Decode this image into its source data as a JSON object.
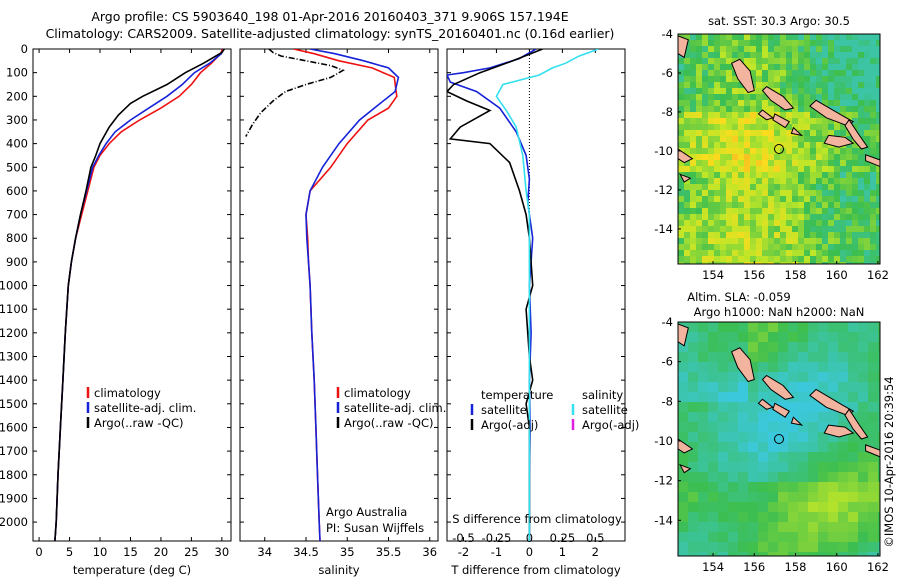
{
  "header": {
    "line1": "Argo profile: CS 5903640_198 01-Apr-2016 20160403_371 9.906S 157.194E",
    "line2": "Climatology: CARS2009. Satellite-adjusted climatology: synTS_20160401.nc (0.16d earlier)"
  },
  "side_label": "©IMOS 10-Apr-2016 20:39:54",
  "colors": {
    "red": "#ee1111",
    "blue": "#1522d8",
    "black": "#000000",
    "cyan": "#33e0ee",
    "magenta": "#e020e0",
    "land": "#f2b49e"
  },
  "chart_data": [
    {
      "id": "temperature",
      "type": "line",
      "xlabel": "temperature (deg C)",
      "xlim": [
        -1,
        31.5
      ],
      "ylim": [
        0,
        2080
      ],
      "y_reversed": true,
      "xticks": [
        0,
        5,
        10,
        15,
        20,
        25,
        30
      ],
      "yticks": [
        0,
        100,
        200,
        300,
        400,
        500,
        600,
        700,
        800,
        900,
        1000,
        1100,
        1200,
        1300,
        1400,
        1500,
        1600,
        1700,
        1800,
        1900,
        2000
      ],
      "legend": {
        "position": "lower-middle",
        "entries": [
          {
            "label": "climatology",
            "color": "red"
          },
          {
            "label": "satellite-adj. clim.",
            "color": "blue"
          },
          {
            "label": "Argo(..raw -QC)",
            "color": "black"
          }
        ]
      },
      "series": [
        {
          "name": "climatology",
          "color": "red",
          "points": [
            [
              30.1,
              0
            ],
            [
              29.8,
              20
            ],
            [
              28.3,
              60
            ],
            [
              26.5,
              100
            ],
            [
              25,
              150
            ],
            [
              23,
              200
            ],
            [
              20,
              250
            ],
            [
              16.5,
              300
            ],
            [
              13.5,
              350
            ],
            [
              11.5,
              400
            ],
            [
              10,
              450
            ],
            [
              9,
              500
            ],
            [
              8,
              600
            ],
            [
              7,
              700
            ],
            [
              6,
              800
            ],
            [
              5.3,
              900
            ],
            [
              4.8,
              1000
            ],
            [
              4.3,
              1200
            ],
            [
              3.9,
              1400
            ],
            [
              3.5,
              1600
            ],
            [
              3.1,
              1800
            ],
            [
              2.8,
              2000
            ],
            [
              2.6,
              2080
            ]
          ]
        },
        {
          "name": "satellite-adj. clim.",
          "color": "blue",
          "points": [
            [
              30.3,
              0
            ],
            [
              29.9,
              20
            ],
            [
              28,
              60
            ],
            [
              25.5,
              100
            ],
            [
              23.5,
              150
            ],
            [
              21,
              200
            ],
            [
              18,
              250
            ],
            [
              15,
              300
            ],
            [
              12.5,
              350
            ],
            [
              11,
              400
            ],
            [
              9.8,
              450
            ],
            [
              8.8,
              500
            ],
            [
              7.8,
              600
            ],
            [
              6.8,
              700
            ],
            [
              6,
              800
            ],
            [
              5.3,
              900
            ],
            [
              4.8,
              1000
            ],
            [
              4.3,
              1200
            ],
            [
              3.9,
              1400
            ],
            [
              3.5,
              1600
            ],
            [
              3.1,
              1800
            ],
            [
              2.8,
              2000
            ],
            [
              2.6,
              2080
            ]
          ]
        },
        {
          "name": "Argo(..raw -QC)",
          "color": "black",
          "points": [
            [
              30.4,
              0
            ],
            [
              30,
              15
            ],
            [
              27,
              60
            ],
            [
              24,
              100
            ],
            [
              21,
              150
            ],
            [
              17,
              200
            ],
            [
              15,
              230
            ],
            [
              13,
              280
            ],
            [
              11.5,
              330
            ],
            [
              10,
              400
            ],
            [
              9.3,
              450
            ],
            [
              8.5,
              500
            ],
            [
              7.7,
              600
            ],
            [
              6.8,
              700
            ],
            [
              6,
              800
            ],
            [
              5.3,
              900
            ],
            [
              4.8,
              1000
            ],
            [
              4.3,
              1200
            ],
            [
              3.9,
              1400
            ],
            [
              3.5,
              1600
            ],
            [
              3.1,
              1800
            ],
            [
              2.8,
              2000
            ],
            [
              2.6,
              2080
            ]
          ]
        }
      ]
    },
    {
      "id": "salinity",
      "type": "line",
      "xlabel": "salinity",
      "xlim": [
        33.7,
        36.1
      ],
      "ylim": [
        0,
        2080
      ],
      "y_reversed": true,
      "xticks": [
        34,
        34.5,
        35,
        35.5,
        36
      ],
      "legend": {
        "position": "lower-middle",
        "entries": [
          {
            "label": "climatology",
            "color": "red"
          },
          {
            "label": "satellite-adj. clim.",
            "color": "blue"
          },
          {
            "label": "Argo(..raw -QC)",
            "color": "black"
          }
        ]
      },
      "annotation": [
        "Argo Australia",
        "PI: Susan Wijffels"
      ],
      "series": [
        {
          "name": "climatology",
          "color": "red",
          "points": [
            [
              34.35,
              0
            ],
            [
              34.6,
              20
            ],
            [
              34.9,
              50
            ],
            [
              35.3,
              80
            ],
            [
              35.57,
              120
            ],
            [
              35.6,
              200
            ],
            [
              35.5,
              250
            ],
            [
              35.25,
              300
            ],
            [
              35,
              400
            ],
            [
              34.8,
              500
            ],
            [
              34.55,
              600
            ],
            [
              34.5,
              700
            ],
            [
              34.52,
              800
            ],
            [
              34.53,
              900
            ],
            [
              34.55,
              1000
            ],
            [
              34.57,
              1200
            ],
            [
              34.6,
              1400
            ],
            [
              34.62,
              1600
            ],
            [
              34.64,
              1800
            ],
            [
              34.66,
              2000
            ],
            [
              34.67,
              2080
            ]
          ]
        },
        {
          "name": "satellite-adj. clim.",
          "color": "blue",
          "points": [
            [
              34.55,
              0
            ],
            [
              34.85,
              20
            ],
            [
              35.2,
              50
            ],
            [
              35.5,
              80
            ],
            [
              35.62,
              120
            ],
            [
              35.58,
              180
            ],
            [
              35.4,
              230
            ],
            [
              35.15,
              300
            ],
            [
              34.9,
              400
            ],
            [
              34.7,
              500
            ],
            [
              34.55,
              600
            ],
            [
              34.5,
              700
            ],
            [
              34.51,
              800
            ],
            [
              34.53,
              900
            ],
            [
              34.55,
              1000
            ],
            [
              34.57,
              1200
            ],
            [
              34.6,
              1400
            ],
            [
              34.62,
              1600
            ],
            [
              34.64,
              1800
            ],
            [
              34.66,
              2000
            ],
            [
              34.67,
              2080
            ]
          ]
        },
        {
          "name": "Argo(..raw -QC)",
          "color": "black",
          "dashed": true,
          "points": [
            [
              34.05,
              0
            ],
            [
              34.1,
              15
            ],
            [
              34.2,
              30
            ],
            [
              34.5,
              50
            ],
            [
              34.8,
              70
            ],
            [
              34.95,
              90
            ],
            [
              34.8,
              120
            ],
            [
              34.5,
              150
            ],
            [
              34.25,
              180
            ],
            [
              34.1,
              220
            ],
            [
              33.95,
              270
            ],
            [
              33.85,
              320
            ],
            [
              33.77,
              370
            ]
          ]
        }
      ]
    },
    {
      "id": "difference",
      "type": "line",
      "xlabel": "T difference from climatology",
      "xlabel_top": "S difference from climatology",
      "xlim": [
        -2.5,
        2.9
      ],
      "ylim": [
        0,
        2080
      ],
      "y_reversed": true,
      "xticks": [
        -2,
        -1,
        0,
        1,
        2
      ],
      "sticks_values": [
        -0.5,
        -0.25,
        0,
        0.25,
        0.5
      ],
      "sticks_labels": [
        "-0.5",
        "-0.25",
        "0",
        "0.25",
        "0.5"
      ],
      "legend": {
        "position": "lower-middle",
        "headers": [
          "temperature",
          "salinity"
        ],
        "entries": [
          {
            "label": "satellite",
            "color": "blue"
          },
          {
            "label": "Argo(-adj)",
            "color": "black"
          },
          {
            "label": "satellite",
            "color": "cyan"
          },
          {
            "label": "Argo(-adj)",
            "color": "magenta"
          }
        ]
      },
      "series": [
        {
          "name": "temperature satellite",
          "color": "blue",
          "points": [
            [
              0.2,
              0
            ],
            [
              -0.3,
              40
            ],
            [
              -1.2,
              80
            ],
            [
              -2.0,
              100
            ],
            [
              -2.5,
              110
            ],
            [
              -2.4,
              140
            ],
            [
              -1.6,
              180
            ],
            [
              -0.9,
              250
            ],
            [
              -0.4,
              350
            ],
            [
              -0.1,
              450
            ],
            [
              0.0,
              550
            ],
            [
              -0.05,
              650
            ],
            [
              0.0,
              700
            ],
            [
              0.1,
              800
            ],
            [
              0.0,
              1000
            ],
            [
              0.05,
              1200
            ],
            [
              0.0,
              1400
            ],
            [
              0.02,
              1600
            ],
            [
              0.0,
              1800
            ],
            [
              0.0,
              2080
            ]
          ]
        },
        {
          "name": "temperature Argo(-adj)",
          "color": "black",
          "points": [
            [
              0.4,
              0
            ],
            [
              -0.5,
              50
            ],
            [
              -1.5,
              100
            ],
            [
              -2.3,
              150
            ],
            [
              -2.5,
              180
            ],
            [
              -1.9,
              220
            ],
            [
              -1.2,
              260
            ],
            [
              -2.1,
              330
            ],
            [
              -2.4,
              380
            ],
            [
              -1.2,
              400
            ],
            [
              -0.6,
              480
            ],
            [
              -0.3,
              600
            ],
            [
              -0.1,
              700
            ],
            [
              0.0,
              800
            ],
            [
              0.1,
              1000
            ],
            [
              -0.1,
              1100
            ],
            [
              0.0,
              1300
            ],
            [
              0.1,
              1400
            ],
            [
              -0.1,
              1500
            ],
            [
              0.0,
              1600
            ],
            [
              0.0,
              1800
            ],
            [
              0.0,
              2080
            ]
          ]
        },
        {
          "name": "salinity satellite",
          "color": "cyan",
          "points": [
            [
              2.1,
              0
            ],
            [
              1.5,
              30
            ],
            [
              1.1,
              60
            ],
            [
              0.7,
              80
            ],
            [
              0.3,
              110
            ],
            [
              -0.8,
              150
            ],
            [
              -1.0,
              200
            ],
            [
              -0.7,
              260
            ],
            [
              -0.4,
              330
            ],
            [
              -0.2,
              450
            ],
            [
              -0.1,
              600
            ],
            [
              0.0,
              700
            ],
            [
              0.0,
              800
            ],
            [
              0.0,
              1000
            ],
            [
              0.0,
              1200
            ],
            [
              0.0,
              1400
            ],
            [
              0.0,
              1600
            ],
            [
              0.0,
              1800
            ],
            [
              0.0,
              2080
            ]
          ]
        }
      ]
    }
  ],
  "maps": [
    {
      "id": "sst-map",
      "title": "sat. SST: 30.3 Argo: 30.5",
      "subtitle1": "",
      "subtitle2": "",
      "xticks": [
        154,
        156,
        158,
        160,
        162
      ],
      "xlim": [
        152.3,
        162.1
      ],
      "yticks": [
        -4,
        -6,
        -8,
        -10,
        -12,
        -14
      ],
      "ylim": [
        -15.8,
        -4
      ],
      "marker": [
        157.2,
        -9.9
      ]
    },
    {
      "id": "sla-map",
      "title": "",
      "subtitle1": "Altim. SLA: -0.059",
      "subtitle2": "Argo h1000: NaN h2000: NaN",
      "xticks": [
        154,
        156,
        158,
        160,
        162
      ],
      "xlim": [
        152.3,
        162.1
      ],
      "yticks": [
        -4,
        -6,
        -8,
        -10,
        -12,
        -14
      ],
      "ylim": [
        -15.8,
        -4
      ],
      "marker": [
        157.2,
        -9.9
      ]
    }
  ]
}
